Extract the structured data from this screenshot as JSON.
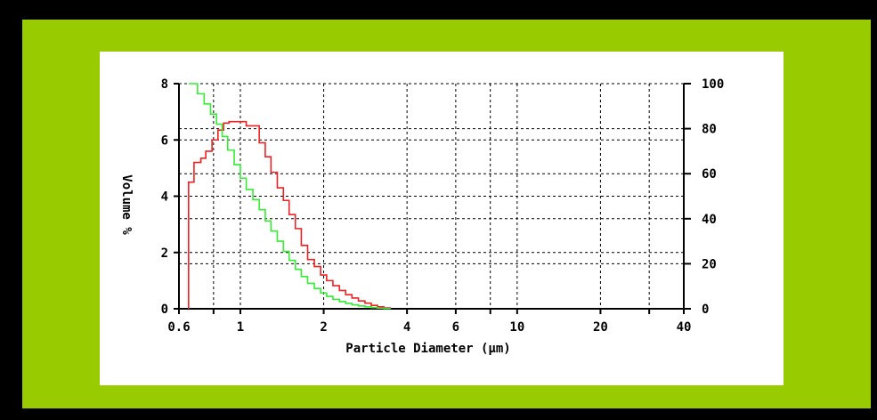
{
  "colors": {
    "frame": "#000000",
    "panel": "#99cc00",
    "card": "#ffffff",
    "series_volume": "#ee2222",
    "series_cumulative": "#33ee33"
  },
  "chart_data": {
    "type": "line",
    "title": "",
    "xlabel": "Particle Diameter (μm)",
    "ylabel": "Volume %",
    "x_scale": "log",
    "xlim": [
      0.6,
      40
    ],
    "ylim": [
      0,
      8
    ],
    "y2lim": [
      0,
      100
    ],
    "x_ticks": [
      0.6,
      1,
      2,
      4,
      6,
      10,
      20,
      40
    ],
    "x_tick_labels": [
      "0.6",
      "1",
      "2",
      "4",
      "6",
      "10",
      "20",
      "40"
    ],
    "y_ticks": [
      0,
      2,
      4,
      6,
      8
    ],
    "y_tick_labels": [
      "0",
      "2",
      "4",
      "6",
      "8"
    ],
    "y2_ticks": [
      0,
      20,
      40,
      60,
      80,
      100
    ],
    "y2_tick_labels": [
      "0",
      "20",
      "40",
      "60",
      "80",
      "100"
    ],
    "grid": true,
    "series": [
      {
        "color": "#ee2222",
        "x": [
          0.65,
          0.68,
          0.72,
          0.75,
          0.79,
          0.83,
          0.87,
          0.91,
          0.95,
          1.0,
          1.05,
          1.11,
          1.17,
          1.23,
          1.29,
          1.36,
          1.43,
          1.5,
          1.58,
          1.66,
          1.75,
          1.85,
          1.95,
          2.05,
          2.16,
          2.28,
          2.4,
          2.53,
          2.67,
          2.82,
          2.97,
          3.13,
          3.3,
          3.48
        ],
        "values": [
          4.5,
          5.2,
          5.35,
          5.6,
          6.0,
          6.35,
          6.6,
          6.65,
          6.65,
          6.65,
          6.5,
          6.5,
          5.9,
          5.4,
          4.85,
          4.3,
          3.85,
          3.35,
          2.85,
          2.25,
          1.75,
          1.5,
          1.2,
          1.0,
          0.82,
          0.65,
          0.5,
          0.38,
          0.28,
          0.2,
          0.12,
          0.07,
          0.03,
          0.0
        ]
      },
      {
        "color": "#33ee33",
        "x": [
          0.65,
          0.7,
          0.74,
          0.78,
          0.82,
          0.86,
          0.9,
          0.95,
          1.0,
          1.05,
          1.11,
          1.17,
          1.23,
          1.29,
          1.36,
          1.43,
          1.5,
          1.58,
          1.66,
          1.75,
          1.85,
          1.95,
          2.05,
          2.16,
          2.28,
          2.4,
          2.53,
          2.67,
          2.82,
          2.97,
          3.13,
          3.3,
          3.48
        ],
        "values": [
          100,
          95.5,
          91,
          86.5,
          82,
          76.5,
          70.5,
          64,
          58,
          53,
          48.5,
          44,
          39,
          34.5,
          30,
          25.5,
          21.5,
          17.5,
          14.3,
          11.3,
          9.0,
          7.0,
          5.5,
          4.2,
          3.2,
          2.4,
          1.75,
          1.25,
          0.85,
          0.5,
          0.3,
          0.1,
          0.0
        ]
      }
    ]
  }
}
